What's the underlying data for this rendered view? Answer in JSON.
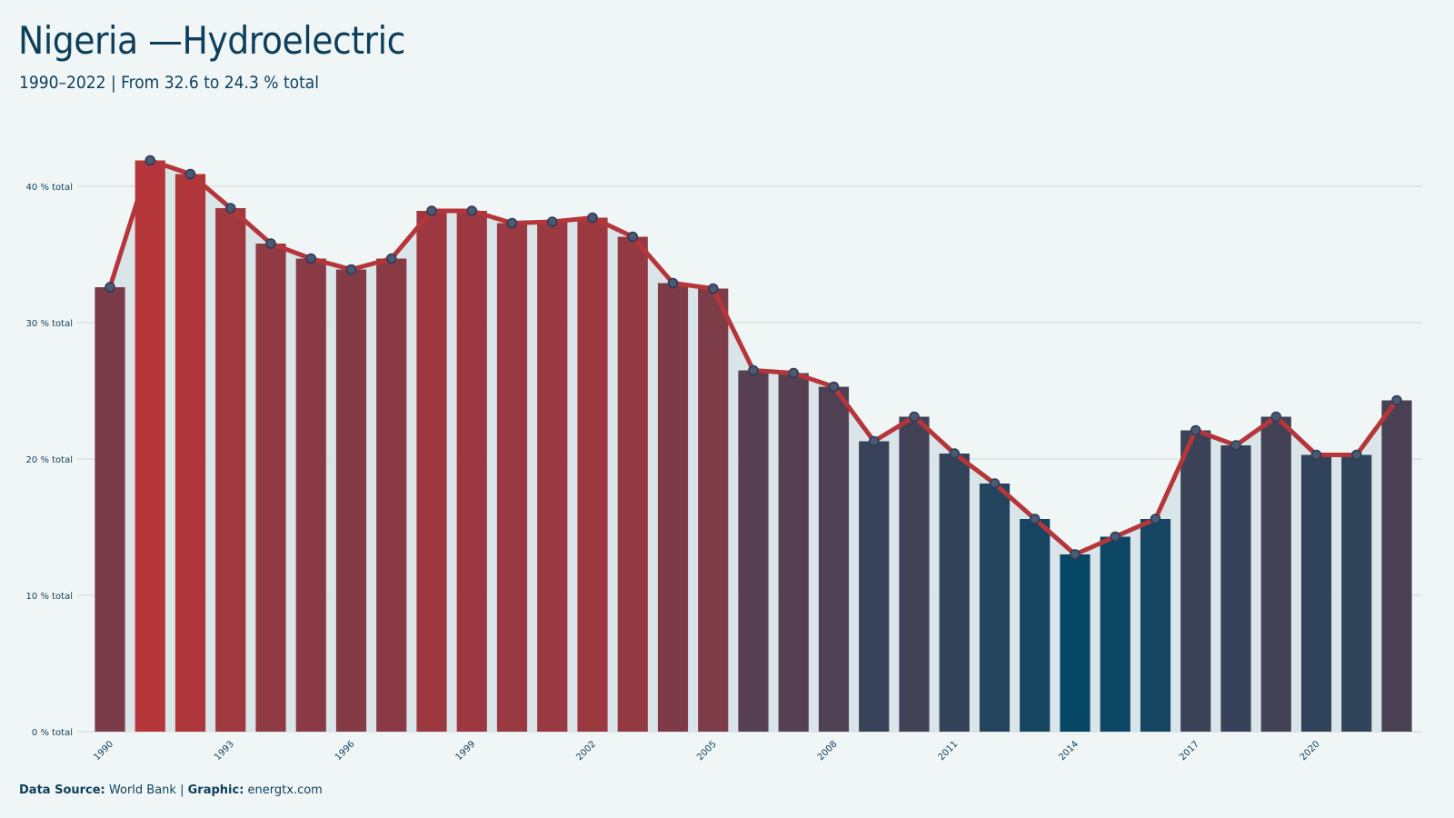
{
  "header": {
    "title": "Nigeria —Hydroelectric",
    "subtitle": "1990–2022 | From 32.6 to 24.3 % total"
  },
  "footer": {
    "source_label": "Data Source:",
    "source_value": "World Bank",
    "separator": "|",
    "graphic_label": "Graphic:",
    "graphic_value": "energtx.com"
  },
  "colors": {
    "high": "#b5363a",
    "low": "#054765",
    "line": "#b5363a",
    "area": "#d7e3e8",
    "marker_fill": "#4b5a72",
    "marker_stroke": "#2b3a55",
    "grid": "#d4dcdf",
    "text": "#0d3f5c"
  },
  "chart_data": {
    "type": "bar",
    "overlay": "line-with-markers-and-area",
    "x": [
      1990,
      1991,
      1992,
      1993,
      1994,
      1995,
      1996,
      1997,
      1998,
      1999,
      2000,
      2001,
      2002,
      2003,
      2004,
      2005,
      2006,
      2007,
      2008,
      2009,
      2010,
      2011,
      2012,
      2013,
      2014,
      2015,
      2016,
      2017,
      2018,
      2019,
      2020,
      2021,
      2022
    ],
    "values": [
      32.6,
      41.9,
      40.9,
      38.4,
      35.8,
      34.7,
      33.9,
      34.7,
      38.2,
      38.2,
      37.3,
      37.4,
      37.7,
      36.3,
      32.9,
      32.5,
      26.5,
      26.3,
      25.3,
      21.3,
      23.1,
      20.4,
      18.2,
      15.6,
      13.0,
      14.3,
      15.6,
      22.1,
      21.0,
      23.1,
      20.3,
      20.3,
      24.3
    ],
    "x_tick_labels": [
      "1990",
      "1993",
      "1996",
      "1999",
      "2002",
      "2005",
      "2008",
      "2011",
      "2014",
      "2017",
      "2020"
    ],
    "y_ticks": [
      0,
      10,
      20,
      30,
      40
    ],
    "y_tick_labels": [
      "0 % total",
      "10 % total",
      "20 % total",
      "30 % total",
      "40 % total"
    ],
    "ylim": [
      0,
      45
    ],
    "grid": "horizontal",
    "legend": "none",
    "color_scale": "value-based: low values dark blue, high values red"
  }
}
